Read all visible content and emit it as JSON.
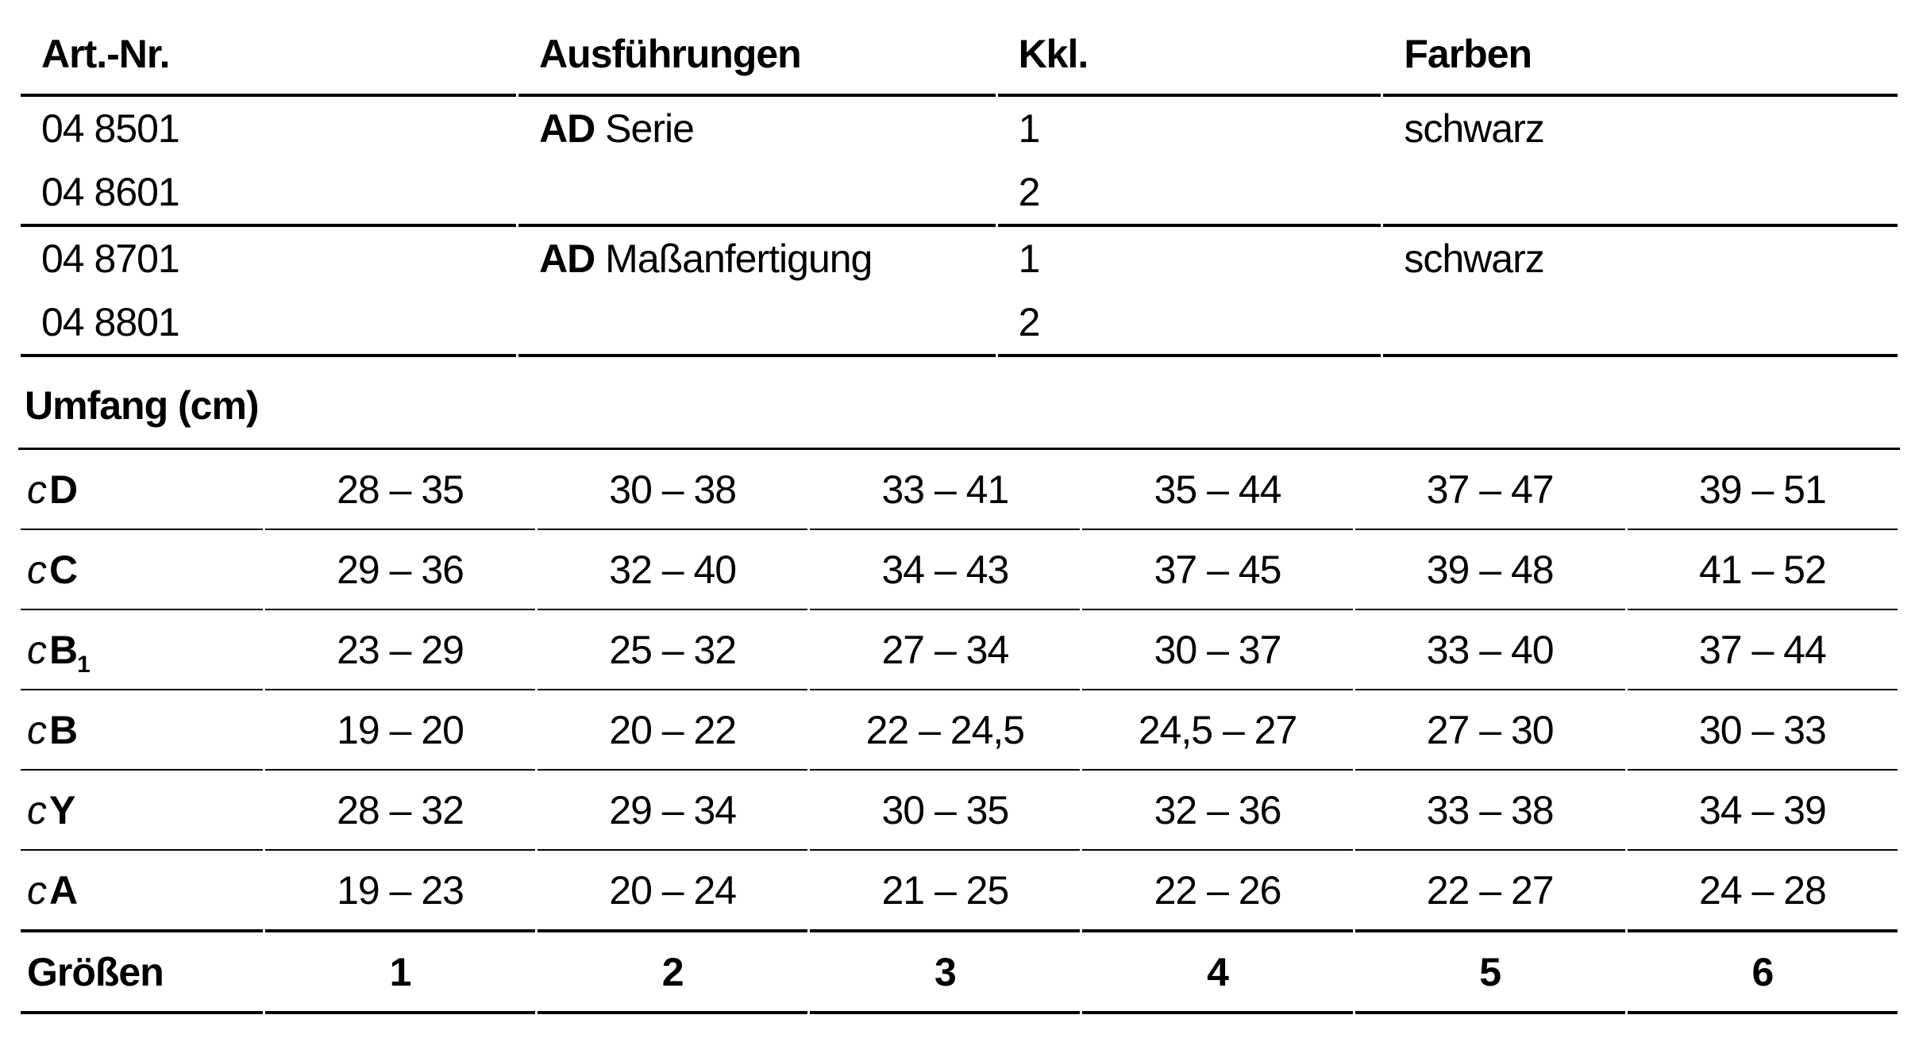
{
  "page": {
    "background_color": "#ffffff",
    "text_color": "#000000",
    "rule_color": "#000000"
  },
  "article_table": {
    "headers": [
      "Art.-Nr.",
      "Ausführungen",
      "Kkl.",
      "Farben"
    ],
    "groups": [
      {
        "rows": [
          {
            "art_nr": "04 8501",
            "execution_bold": "AD",
            "execution": "Serie",
            "kkl": "1",
            "color": "schwarz"
          },
          {
            "art_nr": "04 8601",
            "execution_bold": "",
            "execution": "",
            "kkl": "2",
            "color": ""
          }
        ]
      },
      {
        "rows": [
          {
            "art_nr": "04 8701",
            "execution_bold": "AD",
            "execution": "Maßanfertigung",
            "kkl": "1",
            "color": "schwarz"
          },
          {
            "art_nr": "04 8801",
            "execution_bold": "",
            "execution": "",
            "kkl": "2",
            "color": ""
          }
        ]
      }
    ]
  },
  "section_title": "Umfang (cm)",
  "measurement_table": {
    "rows": [
      {
        "prefix": "c",
        "letter": "D",
        "sub": "",
        "values": [
          "28 – 35",
          "30 – 38",
          "33 – 41",
          "35 – 44",
          "37 – 47",
          "39 – 51"
        ]
      },
      {
        "prefix": "c",
        "letter": "C",
        "sub": "",
        "values": [
          "29 – 36",
          "32 – 40",
          "34 – 43",
          "37 – 45",
          "39 – 48",
          "41 – 52"
        ]
      },
      {
        "prefix": "c",
        "letter": "B",
        "sub": "1",
        "values": [
          "23 – 29",
          "25 – 32",
          "27 – 34",
          "30 – 37",
          "33 – 40",
          "37 – 44"
        ]
      },
      {
        "prefix": "c",
        "letter": "B",
        "sub": "",
        "values": [
          "19 – 20",
          "20 – 22",
          "22 – 24,5",
          "24,5 – 27",
          "27 – 30",
          "30 – 33"
        ]
      },
      {
        "prefix": "c",
        "letter": "Y",
        "sub": "",
        "values": [
          "28 – 32",
          "29 – 34",
          "30 – 35",
          "32 – 36",
          "33 – 38",
          "34 – 39"
        ]
      },
      {
        "prefix": "c",
        "letter": "A",
        "sub": "",
        "values": [
          "19 – 23",
          "20 – 24",
          "21 – 25",
          "22 – 26",
          "22 – 27",
          "24 – 28"
        ]
      }
    ],
    "sizes_row": {
      "label": "Größen",
      "values": [
        "1",
        "2",
        "3",
        "4",
        "5",
        "6"
      ]
    }
  }
}
